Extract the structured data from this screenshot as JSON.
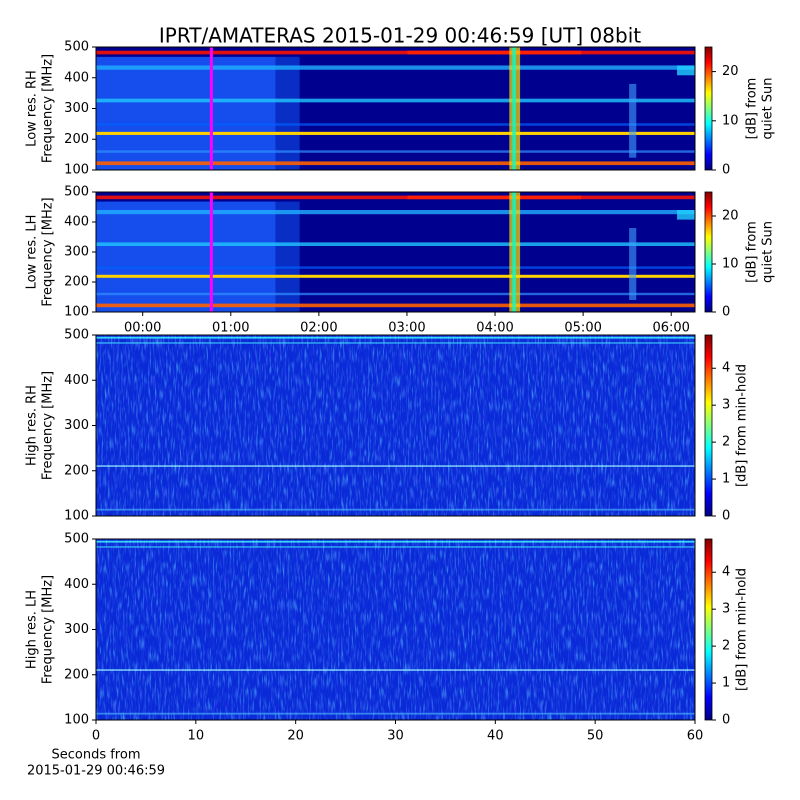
{
  "chart_data": [
    {
      "type": "heatmap",
      "title": "IPRT/AMATERAS 2015-01-29 00:46:59 [UT]   08bit",
      "kind": "low-res",
      "ylabel": [
        "Low res. RH",
        "Frequency [MHz]"
      ],
      "ylim": [
        100,
        500
      ],
      "yticks": [
        100,
        200,
        300,
        400,
        500
      ],
      "xlim": [
        -0.53,
        6.27
      ],
      "vline": {
        "x": 0.78,
        "color": "#ff00ff"
      },
      "colormap": "jet",
      "clim": [
        0,
        25
      ],
      "cticks": [
        0,
        10,
        20
      ],
      "clabel": [
        "[dB] from",
        "quiet Sun"
      ]
    },
    {
      "type": "heatmap",
      "kind": "low-res",
      "ylabel": [
        "Low res. LH",
        "Frequency [MHz]"
      ],
      "ylim": [
        100,
        500
      ],
      "yticks": [
        100,
        200,
        300,
        400,
        500
      ],
      "xlim": [
        -0.53,
        6.27
      ],
      "xticks": [
        {
          "value": 0,
          "label": "00:00"
        },
        {
          "value": 1,
          "label": "01:00"
        },
        {
          "value": 2,
          "label": "02:00"
        },
        {
          "value": 3,
          "label": "03:00"
        },
        {
          "value": 4,
          "label": "04:00"
        },
        {
          "value": 5,
          "label": "05:00"
        },
        {
          "value": 6,
          "label": "06:00"
        }
      ],
      "vline": {
        "x": 0.78,
        "color": "#ff00ff"
      },
      "colormap": "jet",
      "clim": [
        0,
        25
      ],
      "cticks": [
        0,
        10,
        20
      ],
      "clabel": [
        "[dB] from",
        "quiet Sun"
      ]
    },
    {
      "type": "heatmap",
      "kind": "high-res",
      "ylabel": [
        "High res. RH",
        "Frequency [MHz]"
      ],
      "ylim": [
        100,
        500
      ],
      "yticks": [
        100,
        200,
        300,
        400,
        500
      ],
      "xlim": [
        0,
        60
      ],
      "colormap": "jet",
      "clim": [
        0,
        4.9
      ],
      "cticks": [
        0,
        1,
        2,
        3,
        4
      ],
      "clabel": [
        "[dB] from min-hold"
      ]
    },
    {
      "type": "heatmap",
      "kind": "high-res",
      "ylabel": [
        "High res. LH",
        "Frequency [MHz]"
      ],
      "ylim": [
        100,
        500
      ],
      "yticks": [
        100,
        200,
        300,
        400,
        500
      ],
      "xlim": [
        0,
        60
      ],
      "xticks": [
        0,
        10,
        20,
        30,
        40,
        50,
        60
      ],
      "xlabel": [
        "Seconds from",
        "2015-01-29 00:46:59"
      ],
      "colormap": "jet",
      "clim": [
        0,
        4.9
      ],
      "cticks": [
        0,
        1,
        2,
        3,
        4
      ],
      "clabel": [
        "[dB] from min-hold"
      ]
    }
  ]
}
